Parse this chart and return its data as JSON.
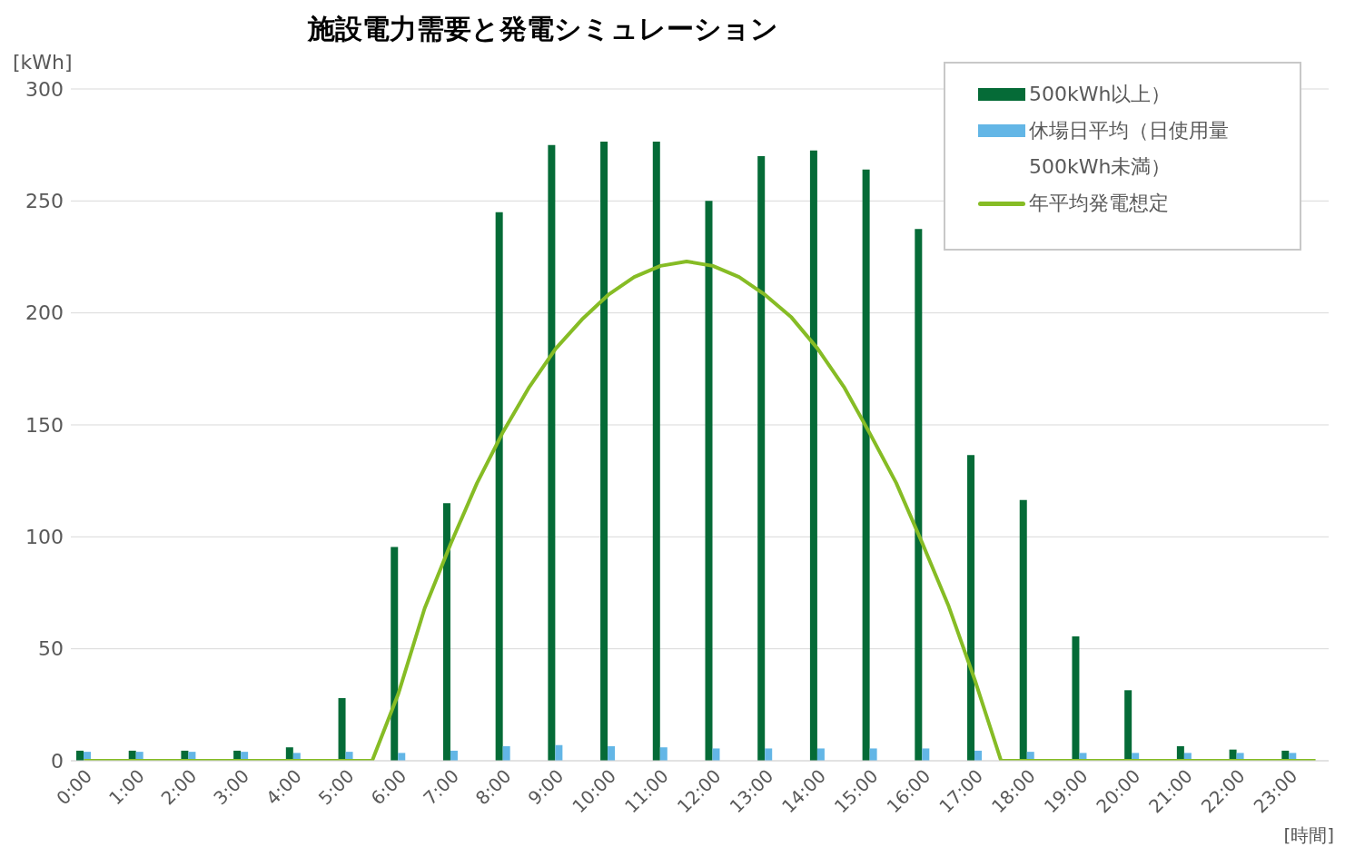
{
  "chart_data": {
    "type": "bar",
    "title": "施設電力需要と発電シミュレーション",
    "xlabel": "[時間]",
    "ylabel": "[kWh]",
    "x": [
      0,
      1,
      2,
      3,
      4,
      5,
      6,
      7,
      8,
      9,
      10,
      11,
      12,
      13,
      14,
      15,
      16,
      17,
      18,
      19,
      20,
      21,
      22,
      23
    ],
    "xlim": [
      -0.25,
      23.75
    ],
    "xticks": [
      {
        "value": 0,
        "label": "0:00"
      },
      {
        "value": 1,
        "label": "1:00"
      },
      {
        "value": 2,
        "label": "2:00"
      },
      {
        "value": 3,
        "label": "3:00"
      },
      {
        "value": 4,
        "label": "4:00"
      },
      {
        "value": 5,
        "label": "5:00"
      },
      {
        "value": 6,
        "label": "6:00"
      },
      {
        "value": 7,
        "label": "7:00"
      },
      {
        "value": 8,
        "label": "8:00"
      },
      {
        "value": 9,
        "label": "9:00"
      },
      {
        "value": 10,
        "label": "10:00"
      },
      {
        "value": 11,
        "label": "11:00"
      },
      {
        "value": 12,
        "label": "12:00"
      },
      {
        "value": 13,
        "label": "13:00"
      },
      {
        "value": 14,
        "label": "14:00"
      },
      {
        "value": 15,
        "label": "15:00"
      },
      {
        "value": 16,
        "label": "16:00"
      },
      {
        "value": 17,
        "label": "17:00"
      },
      {
        "value": 18,
        "label": "18:00"
      },
      {
        "value": 19,
        "label": "19:00"
      },
      {
        "value": 20,
        "label": "20:00"
      },
      {
        "value": 21,
        "label": "21:00"
      },
      {
        "value": 22,
        "label": "22:00"
      },
      {
        "value": 23,
        "label": "23:00"
      }
    ],
    "ylim": [
      0,
      300
    ],
    "yticks": [
      0,
      50,
      100,
      150,
      200,
      250,
      300
    ],
    "grid": "y",
    "legend": "top right",
    "series": [
      {
        "name": "500kWh以上）",
        "color": "#056b37",
        "values": [
          4.5,
          4.5,
          4.5,
          4.5,
          6,
          28,
          95.5,
          115,
          245,
          275,
          276.5,
          276.5,
          250,
          270,
          272.5,
          264,
          237.5,
          136.5,
          116.5,
          55.5,
          31.5,
          6.5,
          5,
          4.5
        ]
      },
      {
        "name": "休場日平均（日使用量500kWh未満）",
        "color": "#63b6e6",
        "values": [
          4,
          4,
          4,
          4,
          3.5,
          4,
          3.5,
          4.5,
          6.5,
          7,
          6.5,
          6,
          5.5,
          5.5,
          5.5,
          5.5,
          5.5,
          4.5,
          4,
          3.5,
          3.5,
          3.5,
          3.5,
          3.5
        ]
      },
      {
        "name": "年平均発電想定",
        "type": "line",
        "color": "#86bc25",
        "x": [
          0,
          0.5,
          1,
          1.5,
          2,
          2.5,
          3,
          3.5,
          4,
          4.5,
          5,
          5.5,
          6,
          6.5,
          7,
          7.5,
          8,
          8.5,
          9,
          9.5,
          10,
          10.5,
          11,
          11.5,
          12,
          12.5,
          13,
          13.5,
          14,
          14.5,
          15,
          15.5,
          16,
          16.5,
          17,
          17.5,
          18,
          18.5,
          19,
          19.5,
          20,
          20.5,
          21,
          21.5,
          22,
          22.5,
          23,
          23.5
        ],
        "values": [
          0,
          0,
          0,
          0,
          0,
          0,
          0,
          0,
          0,
          0,
          0,
          0,
          30,
          68,
          97,
          124,
          147,
          167,
          184,
          197,
          208,
          216,
          221,
          223,
          221,
          216,
          208,
          198,
          184,
          167,
          146,
          124,
          97,
          69,
          36,
          0,
          0,
          0,
          0,
          0,
          0,
          0,
          0,
          0,
          0,
          0,
          0,
          0
        ]
      }
    ]
  }
}
